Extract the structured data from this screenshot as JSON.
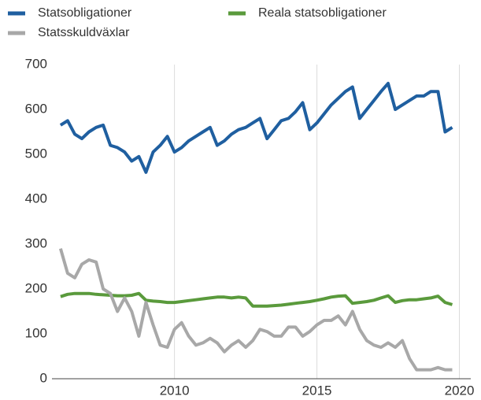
{
  "chart_data": {
    "type": "line",
    "x": [
      2006,
      2006.25,
      2006.5,
      2006.75,
      2007,
      2007.25,
      2007.5,
      2007.75,
      2008,
      2008.25,
      2008.5,
      2008.75,
      2009,
      2009.25,
      2009.5,
      2009.75,
      2010,
      2010.25,
      2010.5,
      2010.75,
      2011,
      2011.25,
      2011.5,
      2011.75,
      2012,
      2012.25,
      2012.5,
      2012.75,
      2013,
      2013.25,
      2013.5,
      2013.75,
      2014,
      2014.25,
      2014.5,
      2014.75,
      2015,
      2015.25,
      2015.5,
      2015.75,
      2016,
      2016.25,
      2016.5,
      2016.75,
      2017,
      2017.25,
      2017.5,
      2017.75,
      2018,
      2018.25,
      2018.5,
      2018.75,
      2019,
      2019.25,
      2019.5,
      2019.75
    ],
    "series": [
      {
        "name": "Statsobligationer",
        "color": "#1f5fa0",
        "values": [
          565,
          575,
          545,
          535,
          550,
          560,
          565,
          520,
          515,
          505,
          485,
          495,
          460,
          505,
          520,
          540,
          505,
          515,
          530,
          540,
          550,
          560,
          520,
          530,
          545,
          555,
          560,
          570,
          580,
          535,
          555,
          575,
          580,
          595,
          615,
          555,
          570,
          590,
          610,
          625,
          640,
          650,
          580,
          600,
          620,
          640,
          658,
          600,
          610,
          620,
          630,
          630,
          640,
          640,
          550,
          560
        ]
      },
      {
        "name": "Reala statsobligationer",
        "color": "#5a9a3c",
        "values": [
          183,
          188,
          190,
          190,
          190,
          188,
          187,
          186,
          185,
          185,
          186,
          190,
          175,
          173,
          172,
          170,
          170,
          172,
          174,
          176,
          178,
          180,
          182,
          182,
          180,
          182,
          180,
          162,
          162,
          162,
          163,
          164,
          166,
          168,
          170,
          172,
          175,
          178,
          182,
          184,
          185,
          168,
          170,
          172,
          175,
          180,
          185,
          170,
          174,
          176,
          176,
          178,
          180,
          184,
          170,
          165
        ]
      },
      {
        "name": "Statsskuldväxlar",
        "color": "#a8a8a8",
        "values": [
          290,
          235,
          225,
          255,
          265,
          260,
          200,
          190,
          150,
          180,
          150,
          95,
          170,
          120,
          75,
          70,
          110,
          125,
          95,
          75,
          80,
          90,
          80,
          60,
          75,
          85,
          70,
          85,
          110,
          105,
          95,
          95,
          115,
          115,
          95,
          105,
          120,
          130,
          130,
          140,
          120,
          150,
          110,
          85,
          75,
          70,
          80,
          70,
          85,
          45,
          20,
          20,
          20,
          25,
          20,
          20
        ]
      }
    ],
    "xlim": [
      2005.7,
      2020.4
    ],
    "xticks": [
      2010,
      2015,
      2020
    ],
    "ylim": [
      0,
      700
    ],
    "yticks": [
      0,
      100,
      200,
      300,
      400,
      500,
      600,
      700
    ],
    "grid": "x",
    "legend": "top-left"
  }
}
